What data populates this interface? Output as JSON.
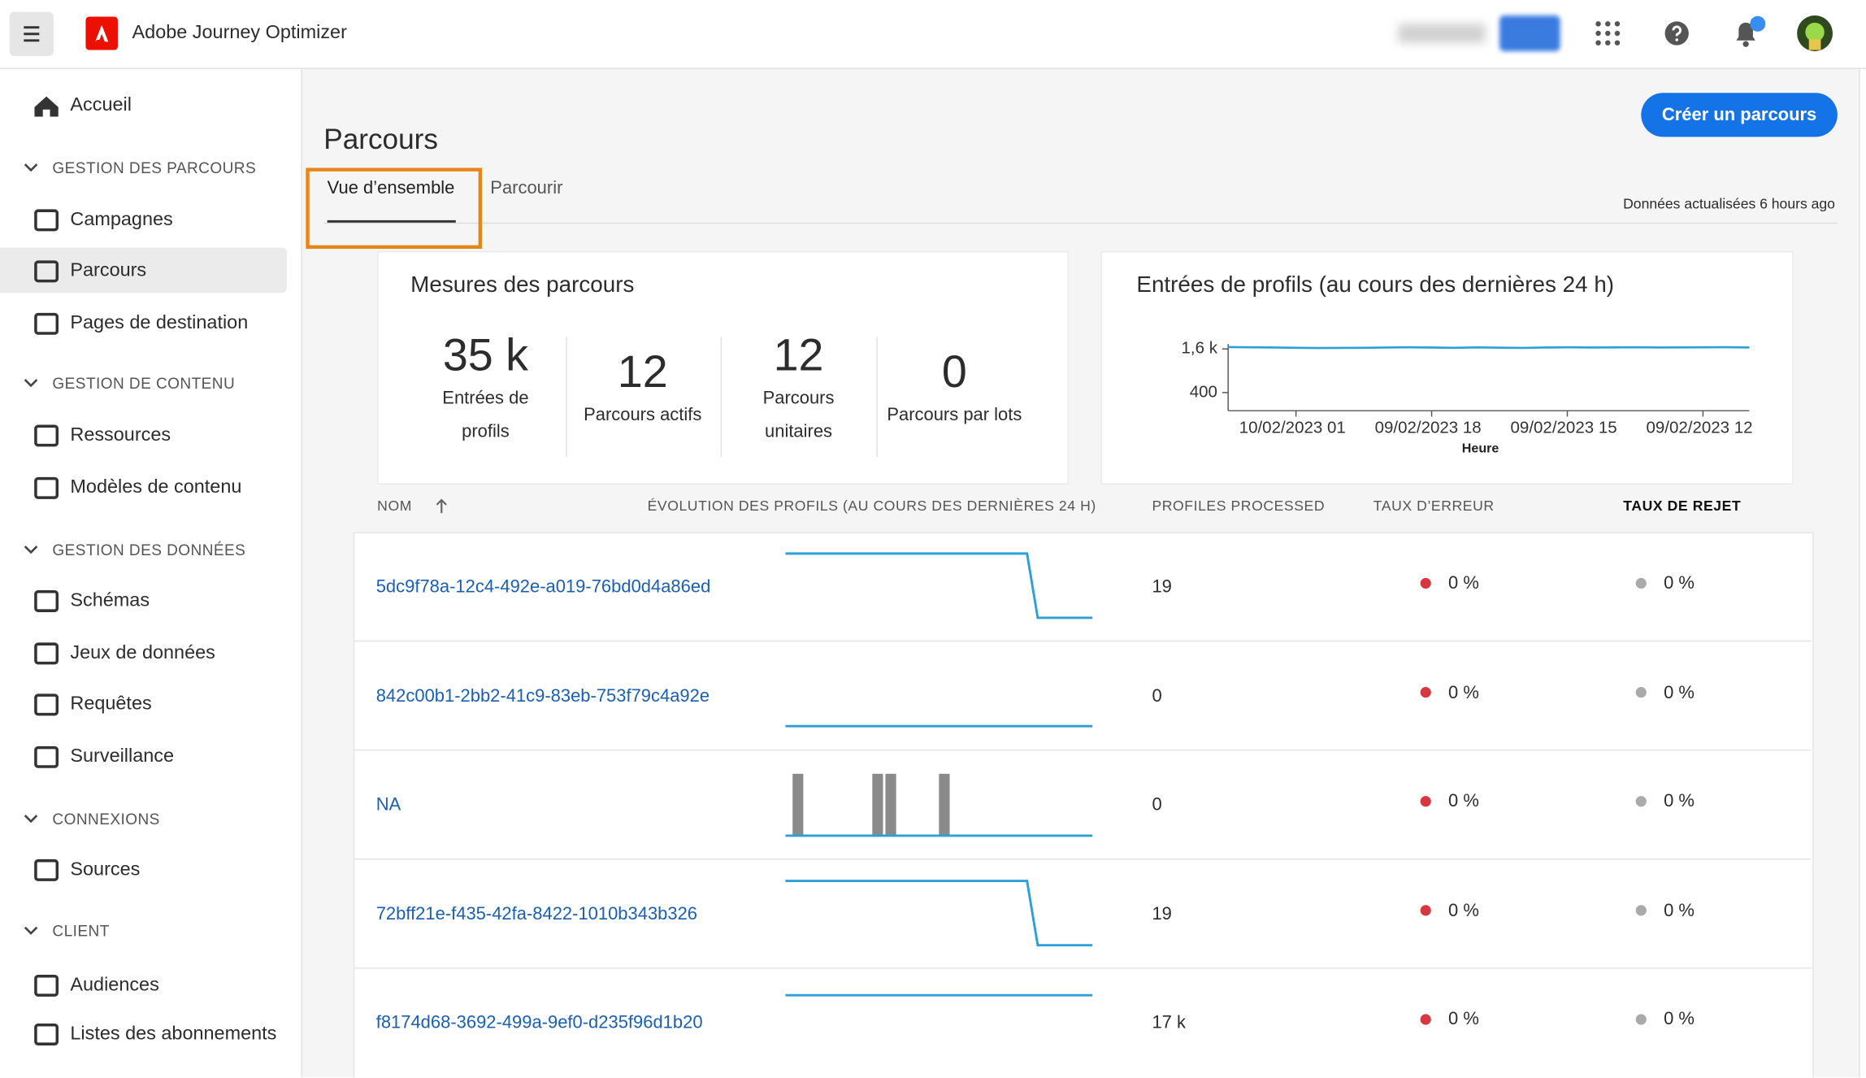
{
  "header": {
    "app_name": "Adobe Journey Optimizer"
  },
  "sidebar": {
    "home": "Accueil",
    "sections": [
      {
        "title": "GESTION DES PARCOURS",
        "items": [
          "Campagnes",
          "Parcours",
          "Pages de destination"
        ]
      },
      {
        "title": "GESTION DE CONTENU",
        "items": [
          "Ressources",
          "Modèles de contenu"
        ]
      },
      {
        "title": "GESTION DES DONNÉES",
        "items": [
          "Schémas",
          "Jeux de données",
          "Requêtes",
          "Surveillance"
        ]
      },
      {
        "title": "CONNEXIONS",
        "items": [
          "Sources"
        ]
      },
      {
        "title": "CLIENT",
        "items": [
          "Audiences",
          "Listes des abonnements"
        ]
      }
    ]
  },
  "page": {
    "title": "Parcours",
    "create_button": "Créer un parcours",
    "tabs": [
      "Vue d’ensemble",
      "Parcourir"
    ],
    "updated": "Données actualisées 6 hours ago"
  },
  "metrics_card": {
    "title": "Mesures des parcours",
    "metrics": [
      {
        "value": "35 k",
        "label": "Entrées de profils"
      },
      {
        "value": "12",
        "label": "Parcours actifs"
      },
      {
        "value": "12",
        "label": "Parcours unitaires"
      },
      {
        "value": "0",
        "label": "Parcours par lots"
      }
    ]
  },
  "chart_data": {
    "type": "line",
    "title": "Entrées de profils (au cours des dernières 24 h)",
    "x_label": "Heure",
    "xticks": [
      "10/02/2023 01",
      "09/02/2023 18",
      "09/02/2023 15",
      "09/02/2023 12"
    ],
    "ylim": [
      0,
      1800
    ],
    "yticks": [
      {
        "value": 1600,
        "label": "1,6 k"
      },
      {
        "value": 400,
        "label": "400"
      }
    ],
    "series": [
      {
        "color": "#2d9fd9",
        "values": [
          1650,
          1645,
          1640,
          1630,
          1625,
          1628,
          1632,
          1640,
          1645,
          1638,
          1630,
          1642,
          1635,
          1628,
          1640,
          1645,
          1640,
          1642,
          1645,
          1640,
          1642,
          1645,
          1648,
          1640
        ]
      }
    ]
  },
  "table": {
    "columns": [
      "NOM",
      "ÉVOLUTION DES PROFILS (AU COURS DES DERNIÈRES 24 H)",
      "PROFILES PROCESSED",
      "TAUX D’ERREUR",
      "TAUX DE REJET"
    ],
    "rows": [
      [
        "5dc9f78a-12c4-492e-a019-76bd0d4a86ed",
        "19",
        "0 %",
        "0 %"
      ],
      [
        "842c00b1-2bb2-41c9-83eb-753f79c4a92e",
        "0",
        "0 %",
        "0 %"
      ],
      [
        "NA",
        "0",
        "0 %",
        "0 %"
      ],
      [
        "72bff21e-f435-42fa-8422-1010b343b326",
        "19",
        "0 %",
        "0 %"
      ],
      [
        "f8174d68-3692-499a-9ef0-d235f96d1b20",
        "17 k",
        "0 %",
        "0 %"
      ]
    ]
  }
}
